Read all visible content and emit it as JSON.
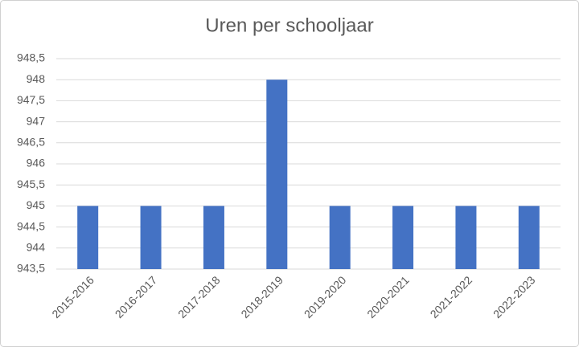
{
  "chart_data": {
    "type": "bar",
    "title": "Uren per schooljaar",
    "categories": [
      "2015-2016",
      "2016-2017",
      "2017-2018",
      "2018-2019",
      "2019-2020",
      "2020-2021",
      "2021-2022",
      "2022-2023"
    ],
    "values": [
      945,
      945,
      945,
      948,
      945,
      945,
      945,
      945
    ],
    "color": "#4472c4",
    "ylim": [
      943.5,
      948.5
    ],
    "yticks": [
      {
        "value": 943.5,
        "label": "943,5"
      },
      944,
      {
        "value": 944.5,
        "label": "944,5"
      },
      945,
      {
        "value": 945.5,
        "label": "945,5"
      },
      946,
      {
        "value": 946.5,
        "label": "946,5"
      },
      947,
      {
        "value": 947.5,
        "label": "947,5"
      },
      948,
      {
        "value": 948.5,
        "label": "948,5"
      }
    ],
    "grid": true
  }
}
